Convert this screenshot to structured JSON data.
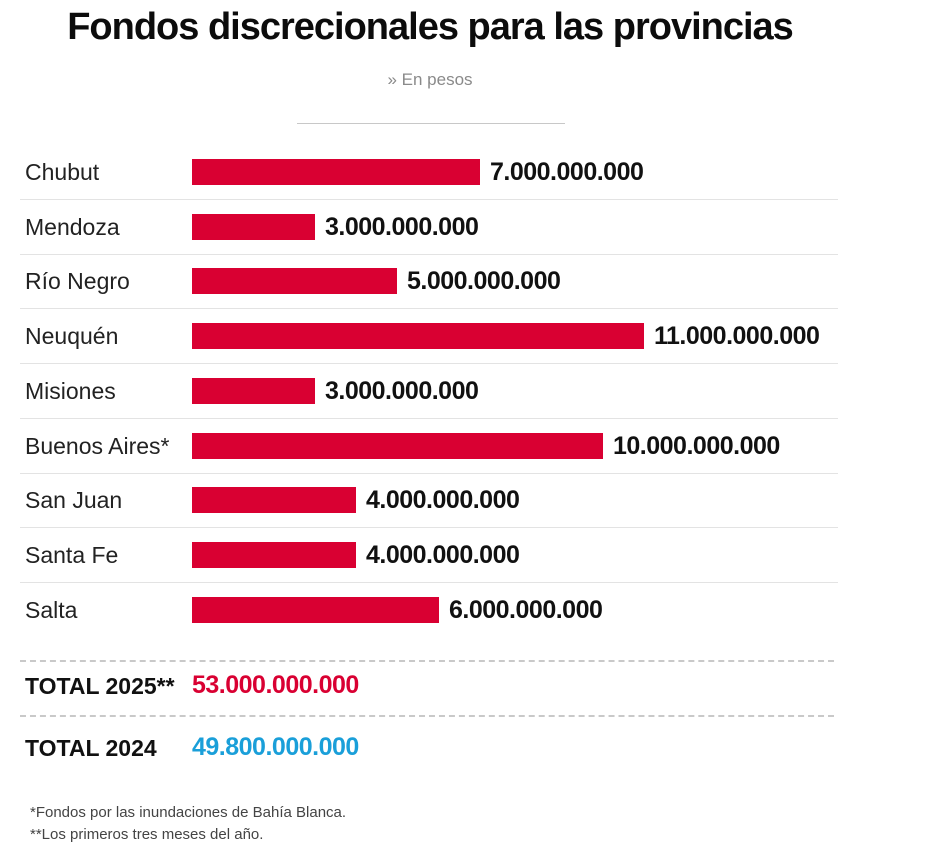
{
  "chart_data": {
    "type": "bar",
    "orientation": "horizontal",
    "title": "Fondos discrecionales para las provincias",
    "subtitle": "» En pesos",
    "categories": [
      "Chubut",
      "Mendoza",
      "Río Negro",
      "Neuquén",
      "Misiones",
      "Buenos Aires*",
      "San Juan",
      "Santa Fe",
      "Salta"
    ],
    "values": [
      7000000000,
      3000000000,
      5000000000,
      11000000000,
      3000000000,
      10000000000,
      4000000000,
      4000000000,
      6000000000
    ],
    "value_labels": [
      "7.000.000.000",
      "3.000.000.000",
      "5.000.000.000",
      "11.000.000.000",
      "3.000.000.000",
      "10.000.000.000",
      "4.000.000.000",
      "4.000.000.000",
      "6.000.000.000"
    ],
    "xlim": [
      0,
      11000000000
    ],
    "bar_color": "#d90032",
    "grid": false,
    "legend": "none"
  },
  "totals": [
    {
      "label": "TOTAL 2025**",
      "value": "53.000.000.000",
      "color": "#d90032"
    },
    {
      "label": "TOTAL 2024",
      "value": "49.800.000.000",
      "color": "#1a9fd9"
    }
  ],
  "notes": [
    "*Fondos por las inundaciones de Bahía Blanca.",
    "**Los primeros tres meses del año."
  ]
}
